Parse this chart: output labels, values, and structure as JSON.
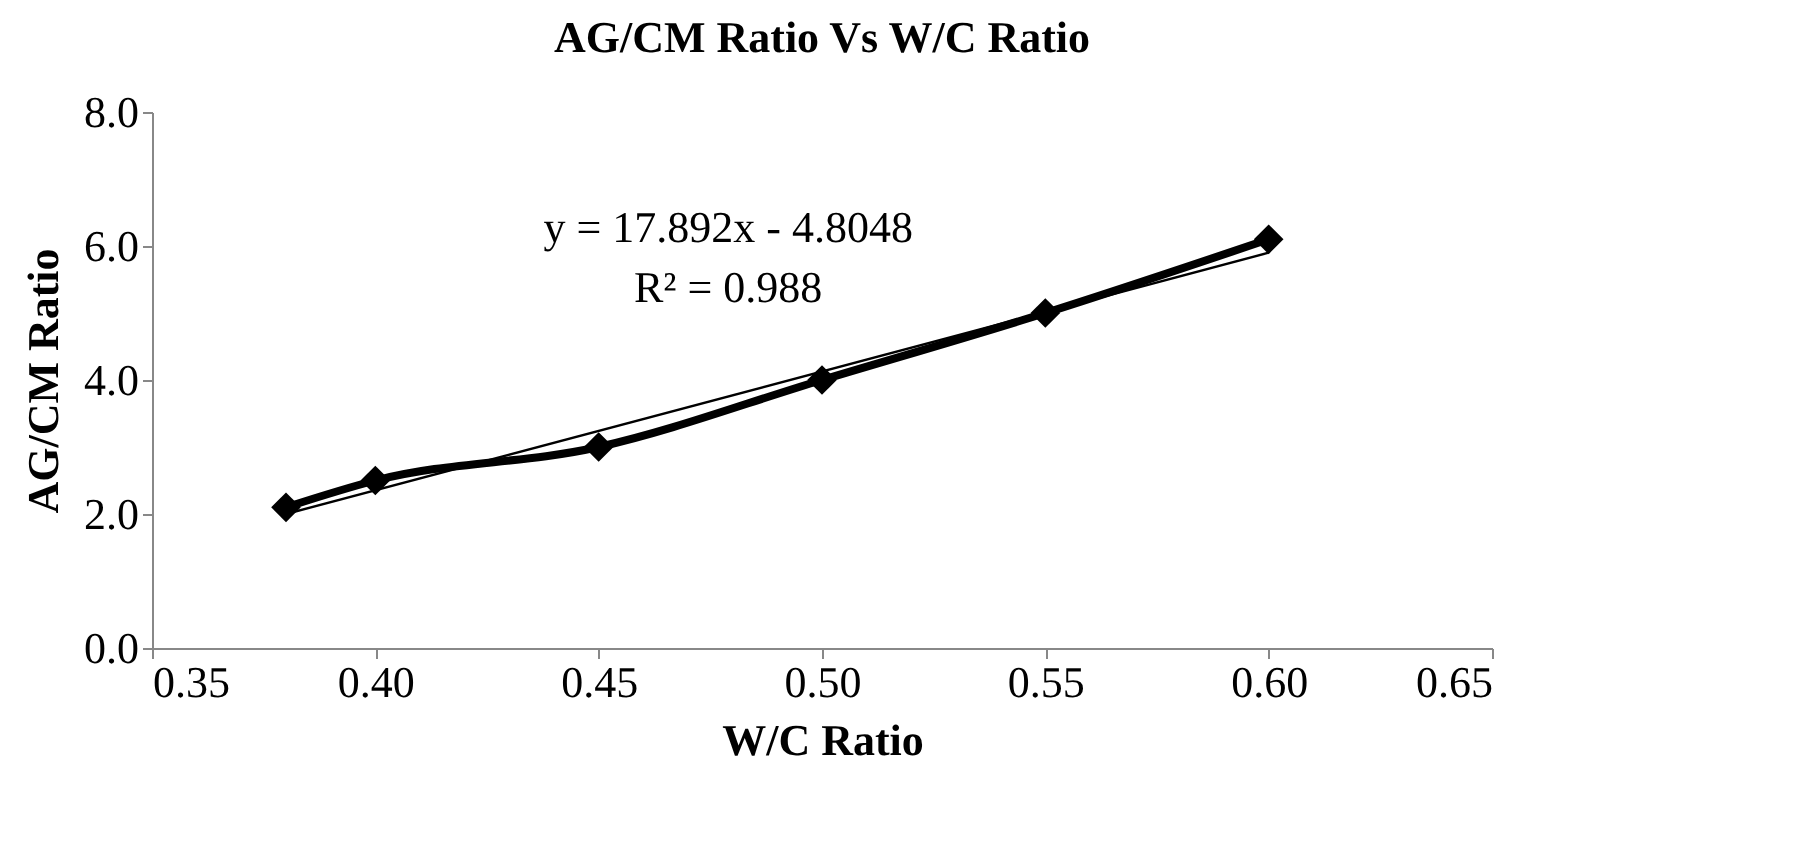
{
  "chart_data": {
    "type": "line",
    "title": "AG/CM Ratio Vs W/C Ratio",
    "xlabel": "W/C Ratio",
    "ylabel": "AG/CM Ratio",
    "x": [
      0.38,
      0.4,
      0.45,
      0.5,
      0.55,
      0.6
    ],
    "series": [
      {
        "color": "#000000",
        "values": [
          2.1,
          2.5,
          3.0,
          4.0,
          5.0,
          6.1
        ],
        "marker": "diamond"
      },
      {
        "type": "line",
        "color": "#000000",
        "x": [
          0.38,
          0.6
        ],
        "values": [
          2.0,
          5.9
        ],
        "marker": "none"
      }
    ],
    "xlim": [
      0.35,
      0.65
    ],
    "xticks": [
      {
        "value": 0.35,
        "label": "0.35"
      },
      {
        "value": 0.4,
        "label": "0.40"
      },
      {
        "value": 0.45,
        "label": "0.45"
      },
      {
        "value": 0.5,
        "label": "0.50"
      },
      {
        "value": 0.55,
        "label": "0.55"
      },
      {
        "value": 0.6,
        "label": "0.60"
      },
      {
        "value": 0.65,
        "label": "0.65"
      }
    ],
    "ylim": [
      0,
      8
    ],
    "yticks": [
      {
        "value": 0,
        "label": "0.0"
      },
      {
        "value": 2,
        "label": "2.0"
      },
      {
        "value": 4,
        "label": "4.0"
      },
      {
        "value": 6,
        "label": "6.0"
      },
      {
        "value": 8,
        "label": "8.0"
      }
    ],
    "grid": false,
    "legend": false,
    "annotations": [
      "y = 17.892x - 4.8048",
      "R² = 0.988"
    ]
  }
}
